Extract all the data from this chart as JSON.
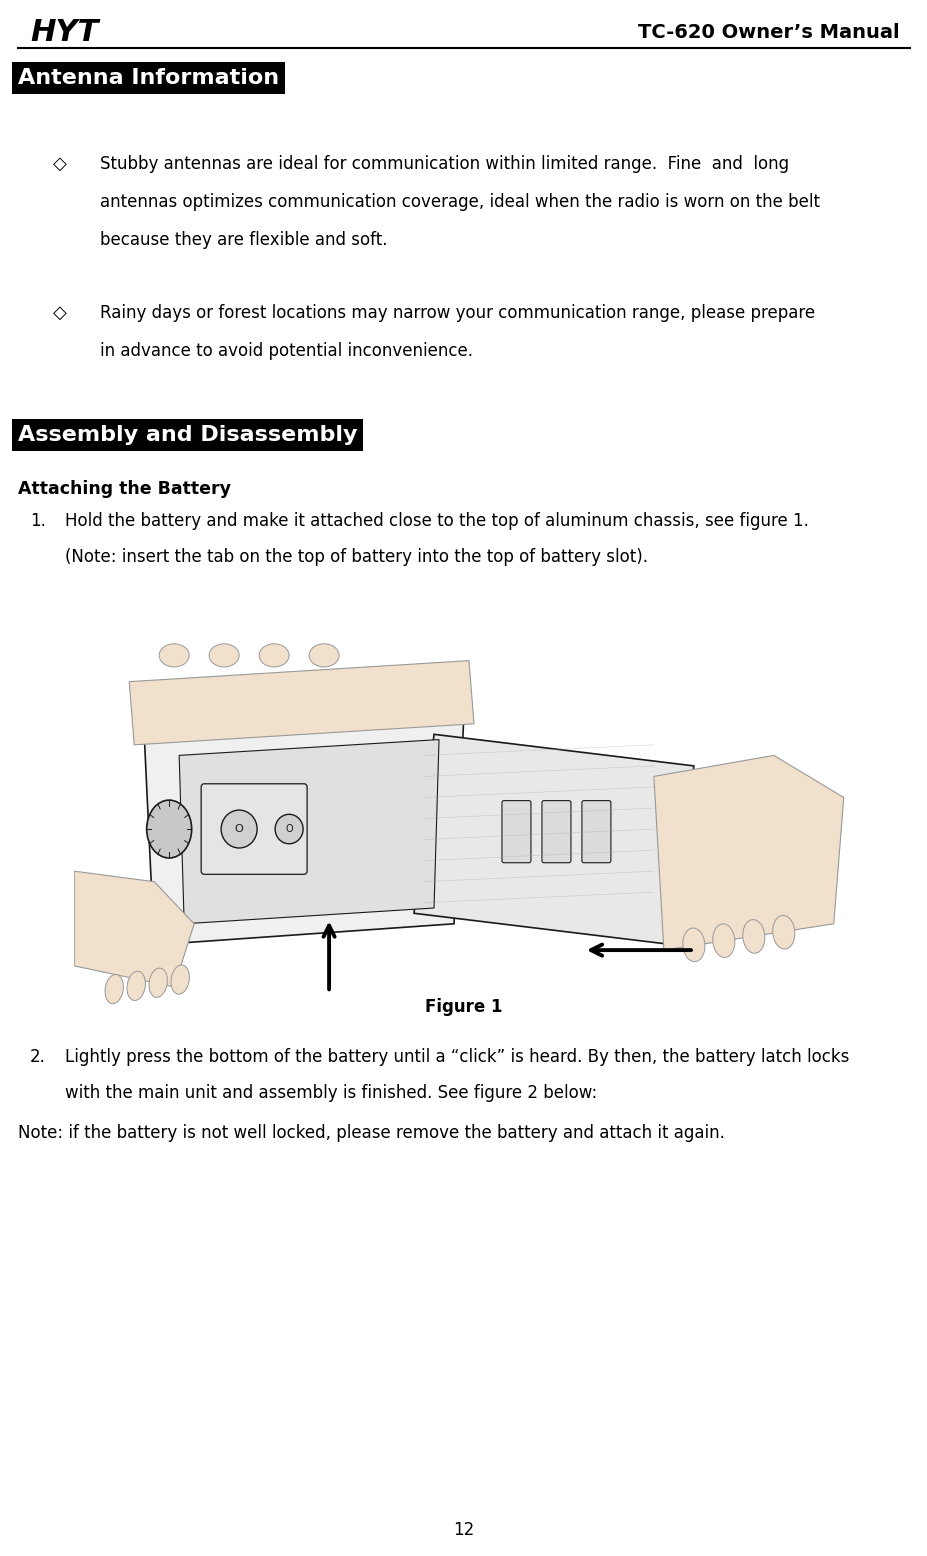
{
  "page_width": 9.28,
  "page_height": 15.56,
  "dpi": 100,
  "bg_color": "#ffffff",
  "header_logo": "HYT",
  "header_title": "TC-620 Owner’s Manual",
  "header_line_color": "#000000",
  "section1_label": "Antenna Information",
  "section1_bg": "#000000",
  "section1_fg": "#ffffff",
  "bullet_char": "◇",
  "bullet1_lines": [
    "Stubby antennas are ideal for communication within limited range.  Fine  and  long",
    "antennas optimizes communication coverage, ideal when the radio is worn on the belt",
    "because they are flexible and soft."
  ],
  "bullet2_lines": [
    "Rainy days or forest locations may narrow your communication range, please prepare",
    "in advance to avoid potential inconvenience."
  ],
  "section2_label": "Assembly and Disassembly",
  "section2_bg": "#000000",
  "section2_fg": "#ffffff",
  "attaching_title": "Attaching the Battery",
  "step1_num": "1.",
  "step1_lines": [
    "Hold the battery and make it attached close to the top of aluminum chassis, see figure 1.",
    "(Note: insert the tab on the top of battery into the top of battery slot)."
  ],
  "figure1_label": "Figure 1",
  "step2_num": "2.",
  "step2_lines": [
    "Lightly press the bottom of the battery until a “click” is heard. By then, the battery latch locks",
    "with the main unit and assembly is finished. See figure 2 below:"
  ],
  "note_text": "Note: if the battery is not well locked, please remove the battery and attach it again.",
  "page_num": "12"
}
